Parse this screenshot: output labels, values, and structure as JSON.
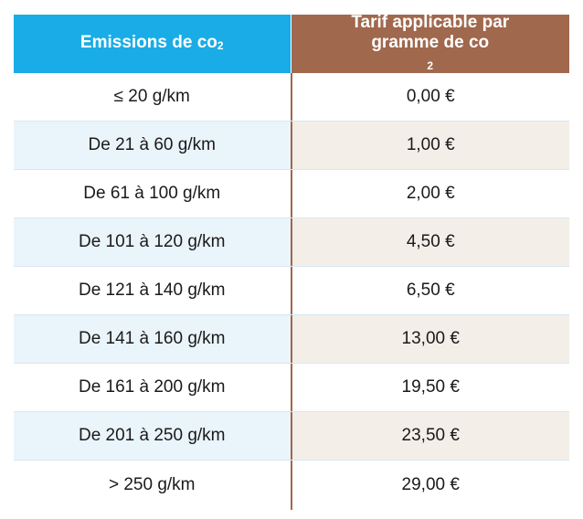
{
  "table": {
    "header": {
      "col1": "Emissions de co",
      "col1_sub": "2",
      "col2_line1": "Tarif applicable par",
      "col2_line2": "gramme de co",
      "col2_sub": "2"
    },
    "colors": {
      "header_left": "#1aace6",
      "header_right": "#a0684d",
      "alt_left": "#eaf4fb",
      "alt_right": "#f4eee9"
    },
    "rows": [
      {
        "emission": "≤ 20 g/km",
        "tarif": "0,00 €"
      },
      {
        "emission": "De 21 à 60 g/km",
        "tarif": "1,00 €"
      },
      {
        "emission": "De 61 à 100 g/km",
        "tarif": "2,00 €"
      },
      {
        "emission": "De 101 à 120 g/km",
        "tarif": "4,50 €"
      },
      {
        "emission": "De 121 à 140 g/km",
        "tarif": "6,50 €"
      },
      {
        "emission": "De 141 à 160 g/km",
        "tarif": "13,00 €"
      },
      {
        "emission": "De 161 à 200 g/km",
        "tarif": "19,50 €"
      },
      {
        "emission": "De 201 à 250 g/km",
        "tarif": "23,50 €"
      },
      {
        "emission": "> 250 g/km",
        "tarif": "29,00 €"
      }
    ]
  }
}
